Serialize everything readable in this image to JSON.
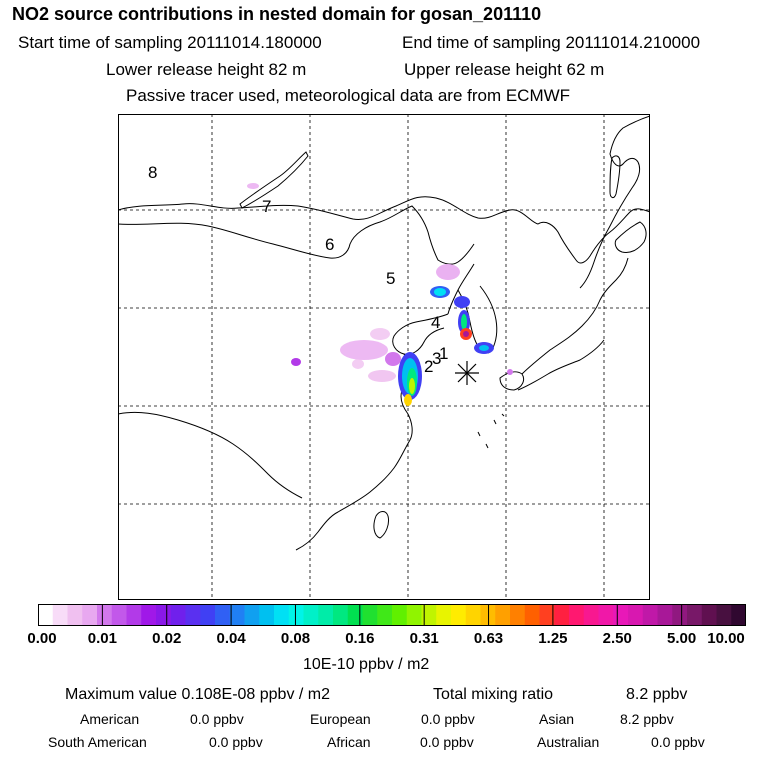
{
  "title": "NO2 source contributions in nested domain for gosan_201110",
  "header": {
    "start_label": "Start time of sampling 20111014.180000",
    "end_label": "End time of sampling 20111014.210000",
    "lower_height": "Lower release height   82 m",
    "upper_height": "Upper release height   62 m",
    "tracer_note": "Passive tracer used, meteorological data are from ECMWF"
  },
  "map": {
    "region_labels": [
      "8",
      "7",
      "6",
      "5",
      "4",
      "3",
      "2",
      "1"
    ],
    "marker": "receptor-asterisk"
  },
  "colorbar": {
    "tick_labels": [
      "0.00",
      "0.01",
      "0.02",
      "0.04",
      "0.08",
      "0.16",
      "0.31",
      "0.63",
      "1.25",
      "2.50",
      "5.00",
      "10.00"
    ],
    "colors": [
      "#ffffff",
      "#f8dcf8",
      "#f0c0f0",
      "#e8a8f0",
      "#d278ec",
      "#c258ea",
      "#b23ae8",
      "#a018e8",
      "#8a18e8",
      "#7020ec",
      "#5a30f0",
      "#4040f4",
      "#3060f4",
      "#2080f4",
      "#10a0f0",
      "#00c0f0",
      "#00e0f4",
      "#00f4e8",
      "#00f0c8",
      "#00eca8",
      "#00e880",
      "#00e050",
      "#20e030",
      "#40e818",
      "#60f000",
      "#90f400",
      "#c0f400",
      "#e8f400",
      "#ffec00",
      "#ffd400",
      "#ffbc00",
      "#ffa000",
      "#ff8000",
      "#ff6000",
      "#ff4020",
      "#ff2040",
      "#ff1870",
      "#f81890",
      "#f018a8",
      "#e818b8",
      "#d818b0",
      "#c018a8",
      "#a81898",
      "#901880",
      "#781868",
      "#601050",
      "#481040",
      "#300830"
    ],
    "unit_label": "10E-10 ppbv / m2"
  },
  "stats": {
    "max_value": "Maximum value  0.108E-08 ppbv / m2",
    "total_label": "Total mixing ratio",
    "total_value": "8.2 ppbv",
    "regions": [
      {
        "name": "American",
        "value": "0.0 ppbv"
      },
      {
        "name": "European",
        "value": "0.0 ppbv"
      },
      {
        "name": "Asian",
        "value": "8.2 ppbv"
      },
      {
        "name": "South American",
        "value": "0.0 ppbv"
      },
      {
        "name": "African",
        "value": "0.0 ppbv"
      },
      {
        "name": "Australian",
        "value": "0.0 ppbv"
      }
    ]
  }
}
